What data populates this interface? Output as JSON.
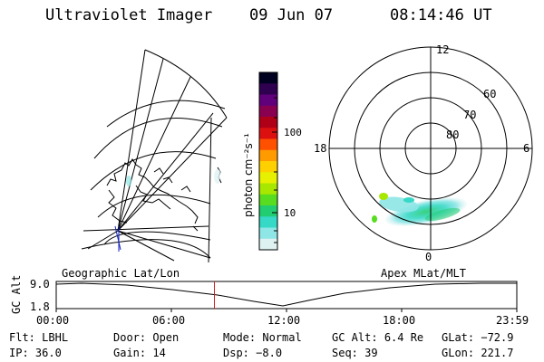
{
  "header": {
    "instrument": "Ultraviolet Imager",
    "date": "09 Jun 07",
    "time": "08:14:46 UT"
  },
  "colorbar": {
    "unit_label": "photon cm⁻²s⁻¹",
    "ticks": [
      "100",
      "10"
    ]
  },
  "polar": {
    "lat_labels": [
      "80",
      "70",
      "60"
    ],
    "mlt_labels": {
      "top": "12",
      "bottom": "0",
      "left": "18",
      "right": "6"
    }
  },
  "timeline": {
    "ylabel": "GC Alt",
    "yticks": [
      "9.0",
      "1.8"
    ],
    "left_title": "Geographic Lat/Lon",
    "right_title": "Apex MLat/MLT",
    "xticks": [
      "00:00",
      "06:00",
      "12:00",
      "18:00",
      "23:59"
    ],
    "current_time_fraction": 0.3436
  },
  "info": {
    "row1": [
      {
        "label": "Flt:",
        "value": "LBHL"
      },
      {
        "label": "Door:",
        "value": "Open"
      },
      {
        "label": "Mode:",
        "value": "Normal"
      },
      {
        "label": "GC Alt:",
        "value": "6.4 Re"
      },
      {
        "label": "GLat:",
        "value": "−72.9"
      }
    ],
    "row2": [
      {
        "label": "IP:",
        "value": "36.0"
      },
      {
        "label": "Gain:",
        "value": "14"
      },
      {
        "label": "Dsp:",
        "value": "−8.0"
      },
      {
        "label": "Seq:",
        "value": "39"
      },
      {
        "label": "GLon:",
        "value": "221.7"
      }
    ]
  },
  "colors": {
    "cursor": "#cc2222",
    "scale": [
      "#000020",
      "#300050",
      "#60007a",
      "#8a0050",
      "#b00018",
      "#dd1010",
      "#ff5000",
      "#ff9a00",
      "#ffd000",
      "#e6f000",
      "#a8e800",
      "#58dc20",
      "#22cc70",
      "#36d8c6",
      "#8ee6e6",
      "#dff2f2"
    ]
  }
}
